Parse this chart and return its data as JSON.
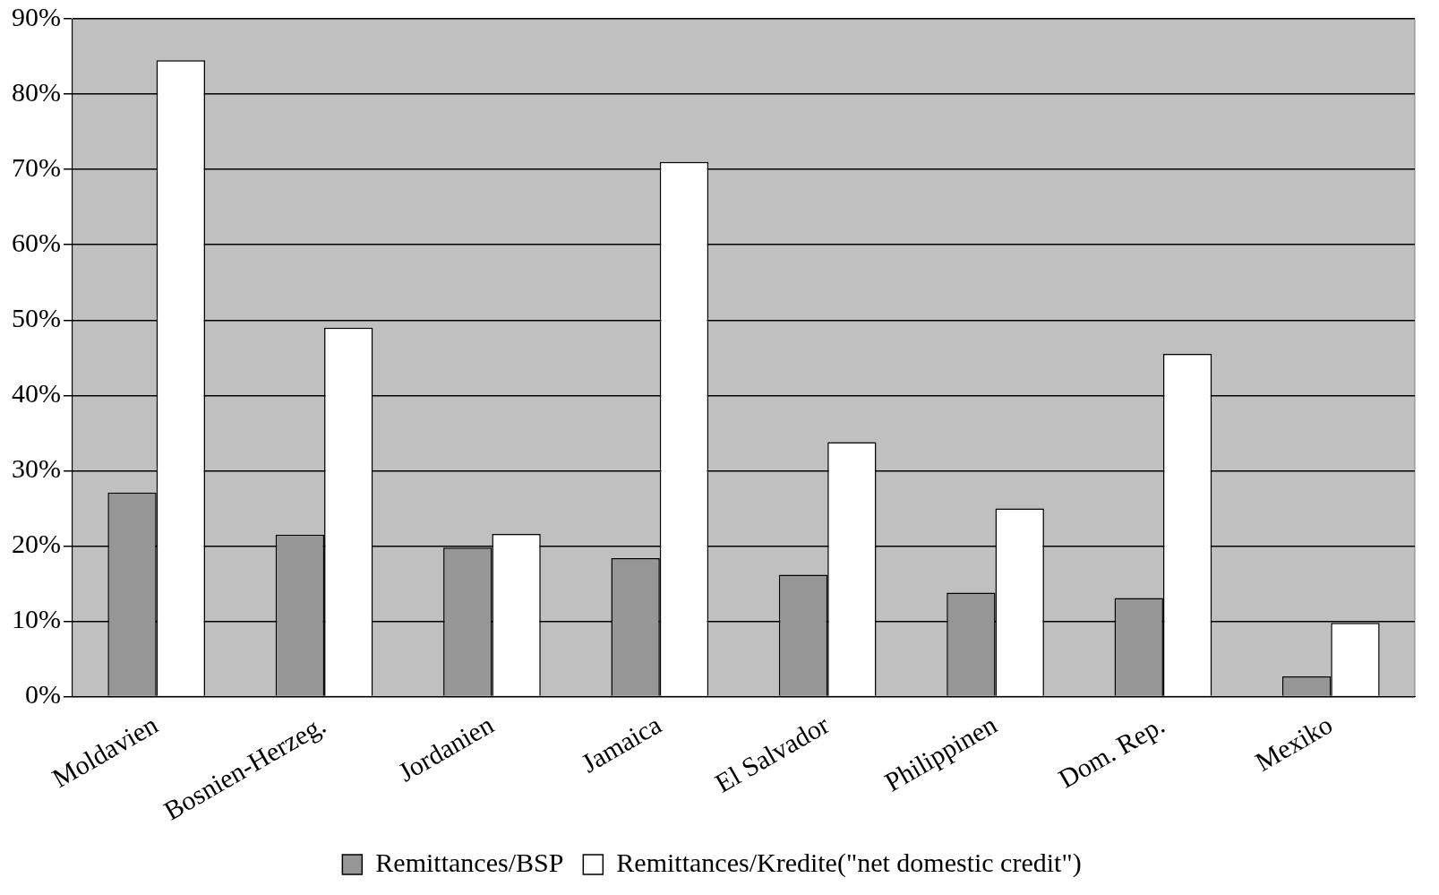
{
  "chart_data": {
    "type": "bar",
    "categories": [
      "Moldavien",
      "Bosnien-Herzeg.",
      "Jordanien",
      "Jamaica",
      "El Salvador",
      "Philippinen",
      "Dom. Rep.",
      "Mexiko"
    ],
    "series": [
      {
        "name": "Remittances/BSP",
        "color": "#969696",
        "values": [
          27.1,
          21.5,
          19.8,
          18.4,
          16.2,
          13.8,
          13.1,
          2.7
        ]
      },
      {
        "name": "Remittances/Kredite(\"net domestic credit\")",
        "color": "#ffffff",
        "values": [
          84.5,
          49,
          21.6,
          71,
          33.8,
          25,
          45.5,
          9.8
        ]
      }
    ],
    "ylim": [
      0,
      90
    ],
    "yticks": [
      {
        "value": 0,
        "label": "0%"
      },
      {
        "value": 10,
        "label": "10%"
      },
      {
        "value": 20,
        "label": "20%"
      },
      {
        "value": 30,
        "label": "30%"
      },
      {
        "value": 40,
        "label": "40%"
      },
      {
        "value": 50,
        "label": "50%"
      },
      {
        "value": 60,
        "label": "60%"
      },
      {
        "value": 70,
        "label": "70%"
      },
      {
        "value": 80,
        "label": "80%"
      },
      {
        "value": 90,
        "label": "90%"
      }
    ],
    "grid": "y",
    "legend": "bottom"
  }
}
